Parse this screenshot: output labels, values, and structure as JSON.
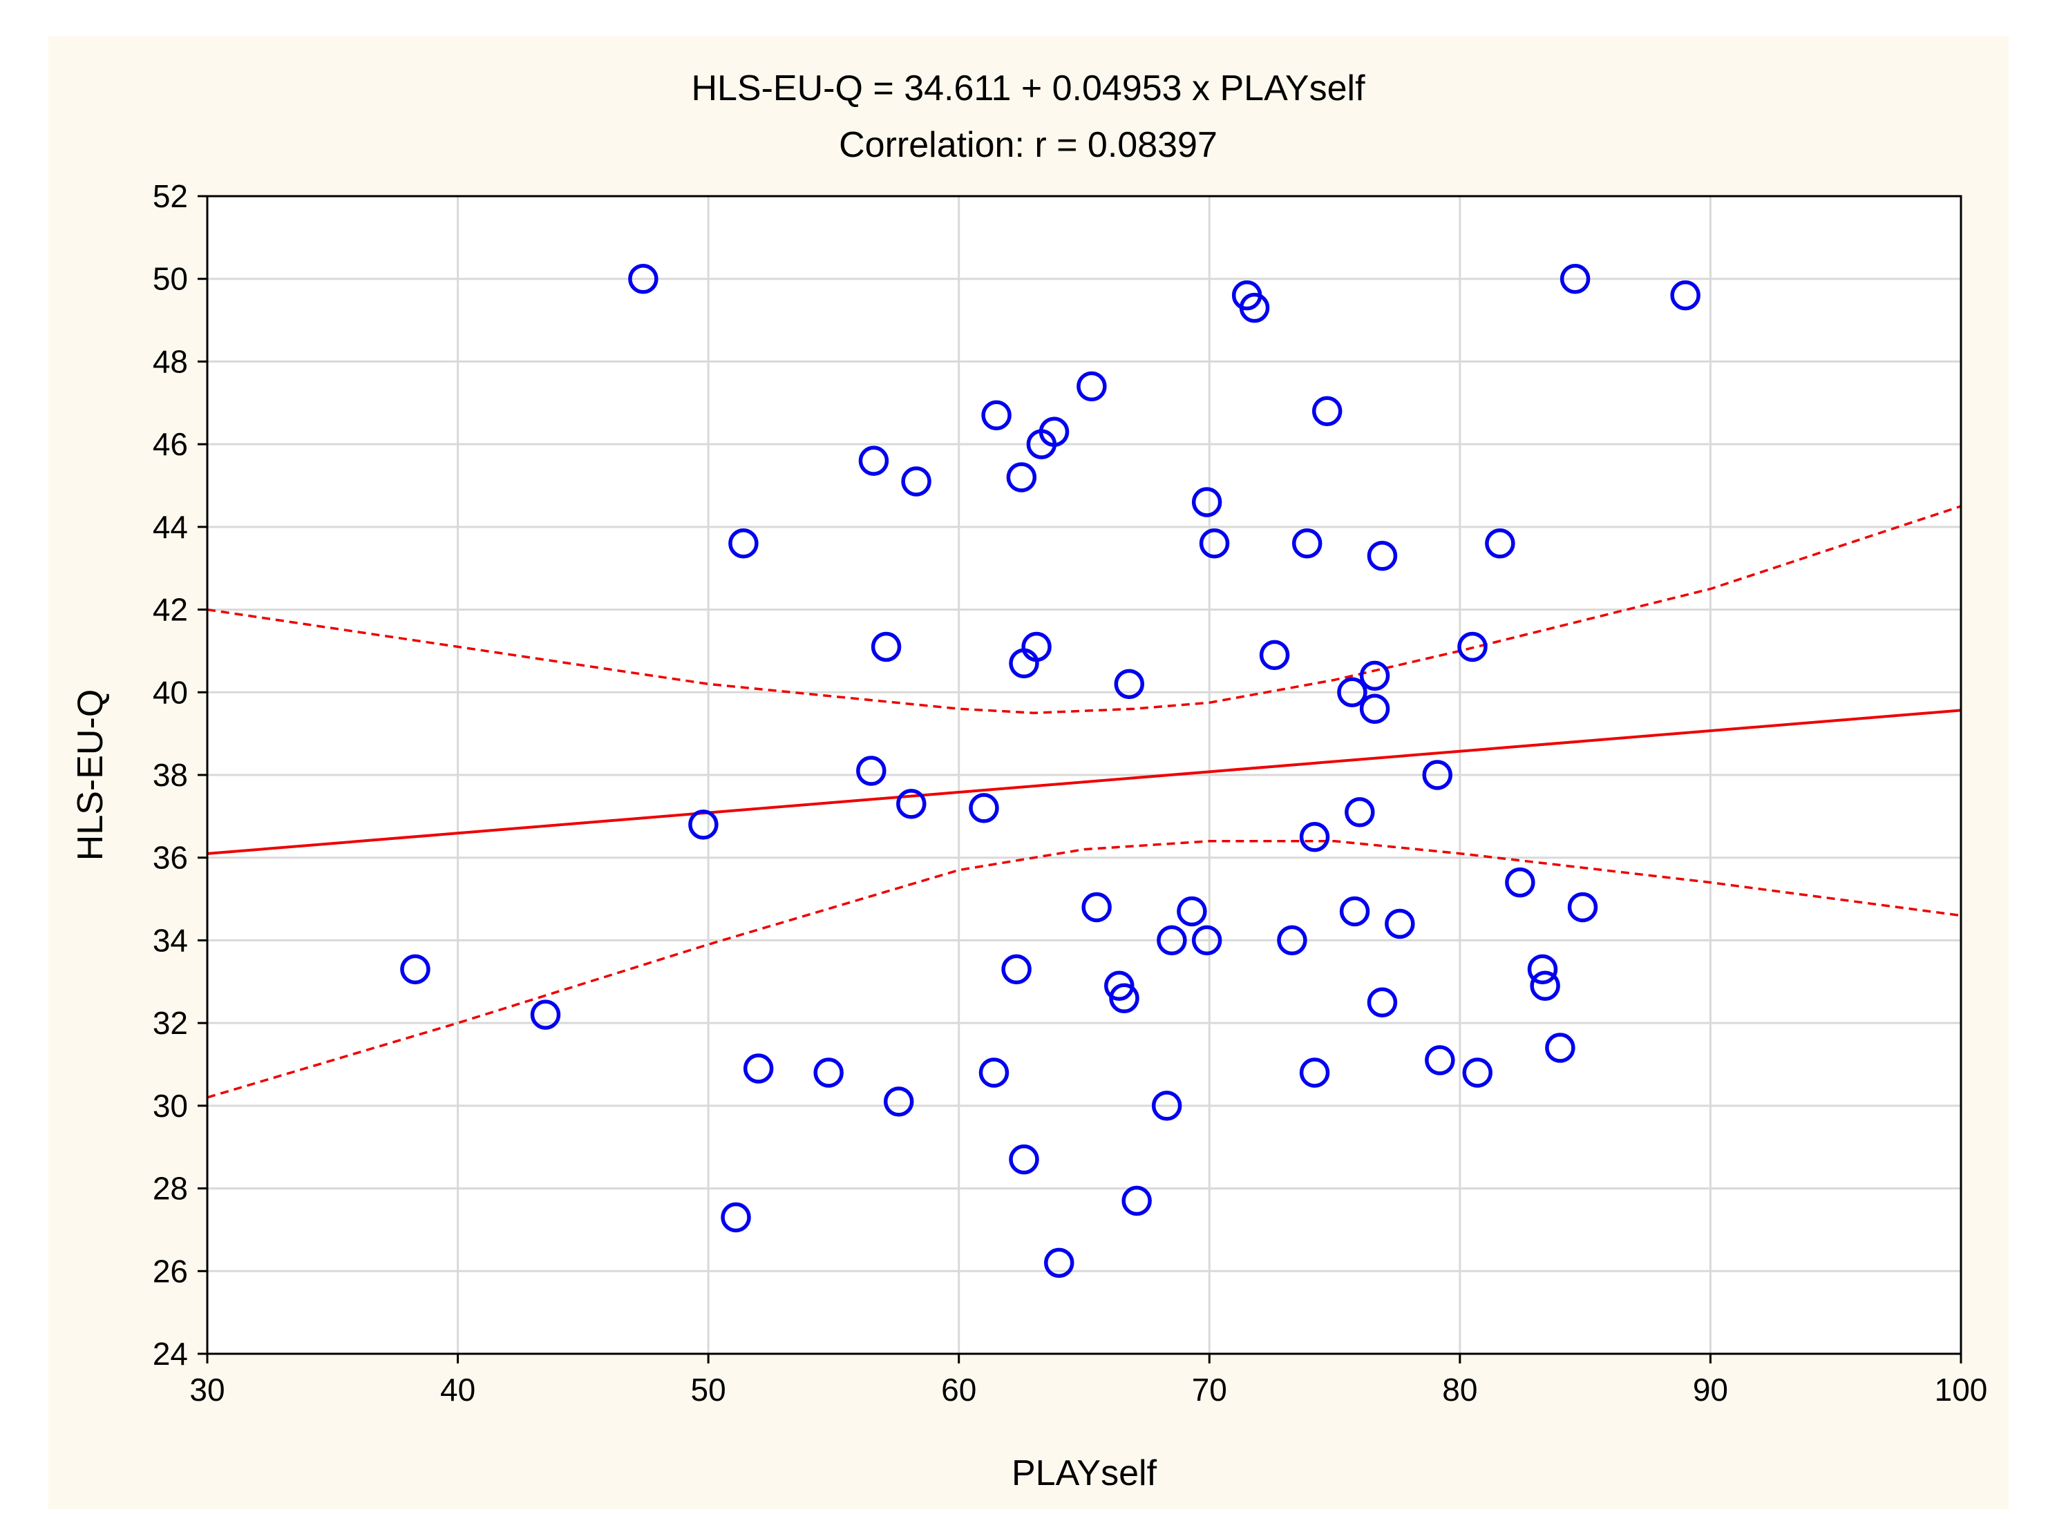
{
  "chart_data": {
    "type": "scatter",
    "title": "HLS-EU-Q = 34.611 + 0.04953 x PLAYself",
    "subtitle": "Correlation: r = 0.08397",
    "xlabel": "PLAYself",
    "ylabel": "HLS-EU-Q",
    "xlim": [
      30,
      100
    ],
    "ylim": [
      24,
      52
    ],
    "xticks": [
      30,
      40,
      50,
      60,
      70,
      80,
      90,
      100
    ],
    "yticks": [
      24,
      26,
      28,
      30,
      32,
      34,
      36,
      38,
      40,
      42,
      44,
      46,
      48,
      50,
      52
    ],
    "grid": true,
    "colors": {
      "points": "#0000ee",
      "fit": "#ee0000",
      "background": "#fdf9ee"
    },
    "fit": {
      "intercept": 34.611,
      "slope": 0.04953
    },
    "confidence_band": {
      "upper": [
        [
          30,
          42.0
        ],
        [
          40,
          41.1
        ],
        [
          50,
          40.2
        ],
        [
          60,
          39.6
        ],
        [
          63,
          39.5
        ],
        [
          67,
          39.6
        ],
        [
          70,
          39.75
        ],
        [
          75,
          40.3
        ],
        [
          80,
          41.0
        ],
        [
          90,
          42.5
        ],
        [
          100,
          44.5
        ]
      ],
      "lower": [
        [
          30,
          30.2
        ],
        [
          40,
          32.0
        ],
        [
          50,
          33.9
        ],
        [
          60,
          35.7
        ],
        [
          65,
          36.2
        ],
        [
          70,
          36.4
        ],
        [
          75,
          36.4
        ],
        [
          80,
          36.1
        ],
        [
          90,
          35.4
        ],
        [
          100,
          34.6
        ]
      ]
    },
    "points": [
      [
        47.4,
        50.0
      ],
      [
        71.5,
        49.6
      ],
      [
        71.8,
        49.3
      ],
      [
        84.6,
        50.0
      ],
      [
        89.0,
        49.6
      ],
      [
        65.3,
        47.4
      ],
      [
        61.5,
        46.7
      ],
      [
        74.7,
        46.8
      ],
      [
        63.8,
        46.3
      ],
      [
        63.3,
        46.0
      ],
      [
        56.6,
        45.6
      ],
      [
        58.3,
        45.1
      ],
      [
        62.5,
        45.2
      ],
      [
        69.9,
        44.6
      ],
      [
        51.4,
        43.6
      ],
      [
        70.2,
        43.6
      ],
      [
        73.9,
        43.6
      ],
      [
        76.9,
        43.3
      ],
      [
        81.6,
        43.6
      ],
      [
        57.1,
        41.1
      ],
      [
        63.1,
        41.1
      ],
      [
        62.6,
        40.7
      ],
      [
        66.8,
        40.2
      ],
      [
        72.6,
        40.9
      ],
      [
        80.5,
        41.1
      ],
      [
        75.7,
        40.0
      ],
      [
        76.6,
        40.4
      ],
      [
        76.6,
        39.6
      ],
      [
        56.5,
        38.1
      ],
      [
        58.1,
        37.3
      ],
      [
        61.0,
        37.2
      ],
      [
        49.8,
        36.8
      ],
      [
        79.1,
        38.0
      ],
      [
        76.0,
        37.1
      ],
      [
        74.2,
        36.5
      ],
      [
        65.5,
        34.8
      ],
      [
        69.3,
        34.7
      ],
      [
        75.8,
        34.7
      ],
      [
        77.6,
        34.4
      ],
      [
        82.4,
        35.4
      ],
      [
        84.9,
        34.8
      ],
      [
        68.5,
        34.0
      ],
      [
        69.9,
        34.0
      ],
      [
        73.3,
        34.0
      ],
      [
        38.3,
        33.3
      ],
      [
        62.3,
        33.3
      ],
      [
        66.4,
        32.9
      ],
      [
        66.6,
        32.6
      ],
      [
        76.9,
        32.5
      ],
      [
        83.3,
        33.3
      ],
      [
        83.4,
        32.9
      ],
      [
        43.5,
        32.2
      ],
      [
        52.0,
        30.9
      ],
      [
        54.8,
        30.8
      ],
      [
        61.4,
        30.8
      ],
      [
        57.6,
        30.1
      ],
      [
        68.3,
        30.0
      ],
      [
        74.2,
        30.8
      ],
      [
        79.2,
        31.1
      ],
      [
        80.7,
        30.8
      ],
      [
        84.0,
        31.4
      ],
      [
        62.6,
        28.7
      ],
      [
        67.1,
        27.7
      ],
      [
        51.1,
        27.3
      ],
      [
        64.0,
        26.2
      ]
    ]
  }
}
